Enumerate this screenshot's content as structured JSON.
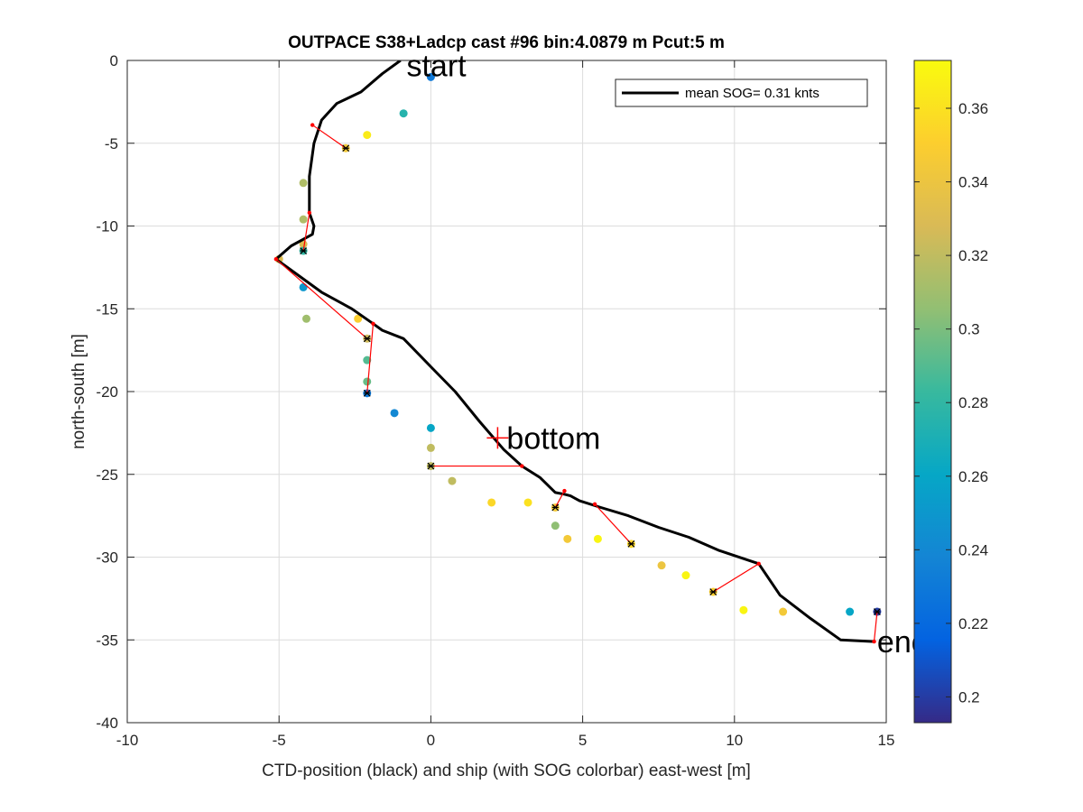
{
  "chart_data": {
    "type": "scatter",
    "title": "OUTPACE S38+Ladcp cast #96 bin:4.0879 m  Pcut:5 m",
    "xlabel": "CTD-position (black) and ship (with SOG colorbar) east-west [m]",
    "ylabel": "north-south [m]",
    "xlim": [
      -10,
      15
    ],
    "ylim": [
      -40,
      0
    ],
    "xticks": [
      -10,
      -5,
      0,
      5,
      10,
      15
    ],
    "xtick_labels": [
      "-10",
      "-5",
      "0",
      "5",
      "10",
      "15"
    ],
    "yticks": [
      0,
      -5,
      -10,
      -15,
      -20,
      -25,
      -30,
      -35,
      -40
    ],
    "ytick_labels": [
      "0",
      "-5",
      "-10",
      "-15",
      "-20",
      "-25",
      "-30",
      "-35",
      "-40"
    ],
    "grid": true,
    "legend": {
      "label": "mean SOG=  0.31 knts",
      "placement": "top-right"
    },
    "colorbar": {
      "range": [
        0.193,
        0.373
      ],
      "ticks": [
        0.2,
        0.22,
        0.24,
        0.26,
        0.28,
        0.3,
        0.32,
        0.34,
        0.36
      ],
      "tick_labels": [
        "0.2",
        "0.22",
        "0.24",
        "0.26",
        "0.28",
        "0.3",
        "0.32",
        "0.34",
        "0.36"
      ],
      "colormap": "parula"
    },
    "ctd_track": {
      "name": "mean SOG=  0.31 knts",
      "color": "#000000",
      "x": [
        -1.0,
        -1.6,
        -2.3,
        -3.1,
        -3.6,
        -3.85,
        -4.0,
        -4.0,
        -3.85,
        -3.9,
        -4.6,
        -5.1,
        -4.5,
        -3.6,
        -2.6,
        -1.9,
        -1.6,
        -0.9,
        0.0,
        0.8,
        1.6,
        2.4,
        3.0,
        3.6,
        4.1,
        4.4,
        4.6,
        4.9,
        5.6,
        6.5,
        7.5,
        8.5,
        9.5,
        10.8,
        11.5,
        12.5,
        13.5,
        14.6
      ],
      "y": [
        0.0,
        -0.8,
        -1.9,
        -2.6,
        -3.6,
        -5.0,
        -7.0,
        -9.2,
        -10.0,
        -10.5,
        -11.2,
        -12.0,
        -12.8,
        -14.0,
        -15.0,
        -15.9,
        -16.3,
        -16.8,
        -18.5,
        -20.0,
        -21.8,
        -23.5,
        -24.5,
        -25.2,
        -26.1,
        -26.2,
        -26.3,
        -26.6,
        -27.0,
        -27.5,
        -28.2,
        -28.8,
        -29.6,
        -30.4,
        -32.3,
        -33.7,
        -35.0,
        -35.1
      ]
    },
    "ship_points": {
      "x": [
        0.0,
        -0.9,
        -2.1,
        -2.8,
        -4.2,
        -4.2,
        -4.2,
        -4.2,
        -5.0,
        -4.2,
        -4.1,
        -2.4,
        -2.1,
        -2.1,
        -2.1,
        -2.1,
        -1.2,
        0.0,
        0.0,
        0.0,
        0.7,
        2.0,
        3.2,
        4.1,
        4.1,
        4.5,
        5.5,
        6.6,
        7.6,
        8.4,
        9.3,
        10.3,
        11.6,
        13.8,
        14.7
      ],
      "y": [
        -1.0,
        -3.2,
        -4.5,
        -5.3,
        -7.4,
        -9.6,
        -11.1,
        -11.5,
        -12.0,
        -13.7,
        -15.6,
        -15.6,
        -16.8,
        -18.1,
        -19.4,
        -20.1,
        -21.3,
        -22.2,
        -23.4,
        -24.5,
        -25.4,
        -26.7,
        -26.7,
        -27.0,
        -28.1,
        -28.9,
        -28.9,
        -29.2,
        -30.5,
        -31.1,
        -32.1,
        -33.2,
        -33.3,
        -33.3,
        -33.3
      ],
      "sog": [
        0.23,
        0.275,
        0.365,
        0.345,
        0.315,
        0.315,
        0.33,
        0.28,
        0.33,
        0.25,
        0.31,
        0.35,
        0.325,
        0.29,
        0.295,
        0.23,
        0.24,
        0.26,
        0.32,
        0.32,
        0.32,
        0.355,
        0.36,
        0.345,
        0.305,
        0.345,
        0.37,
        0.355,
        0.34,
        0.37,
        0.35,
        0.37,
        0.345,
        0.26,
        0.2
      ]
    },
    "connections": [
      {
        "from": [
          -3.9,
          -3.9
        ],
        "to": [
          -2.8,
          -5.3
        ]
      },
      {
        "from": [
          -4.0,
          -9.2
        ],
        "to": [
          -4.2,
          -11.5
        ]
      },
      {
        "from": [
          -5.1,
          -12.0
        ],
        "to": [
          -2.1,
          -16.8
        ]
      },
      {
        "from": [
          -1.9,
          -15.9
        ],
        "to": [
          -2.1,
          -20.1
        ]
      },
      {
        "from": [
          3.0,
          -24.5
        ],
        "to": [
          0.0,
          -24.5
        ]
      },
      {
        "from": [
          4.4,
          -26.0
        ],
        "to": [
          4.1,
          -27.0
        ]
      },
      {
        "from": [
          5.4,
          -26.8
        ],
        "to": [
          6.6,
          -29.2
        ]
      },
      {
        "from": [
          10.8,
          -30.4
        ],
        "to": [
          9.3,
          -32.1
        ]
      },
      {
        "from": [
          14.6,
          -35.1
        ],
        "to": [
          14.7,
          -33.3
        ]
      }
    ],
    "annotations": [
      {
        "text": "start",
        "x": -0.8,
        "y": -0.3,
        "marker": "none"
      },
      {
        "text": "bottom",
        "x": 2.2,
        "y": -22.8,
        "marker": "plus"
      },
      {
        "text": "end",
        "x": 14.7,
        "y": -35.1,
        "marker": "none"
      }
    ]
  }
}
